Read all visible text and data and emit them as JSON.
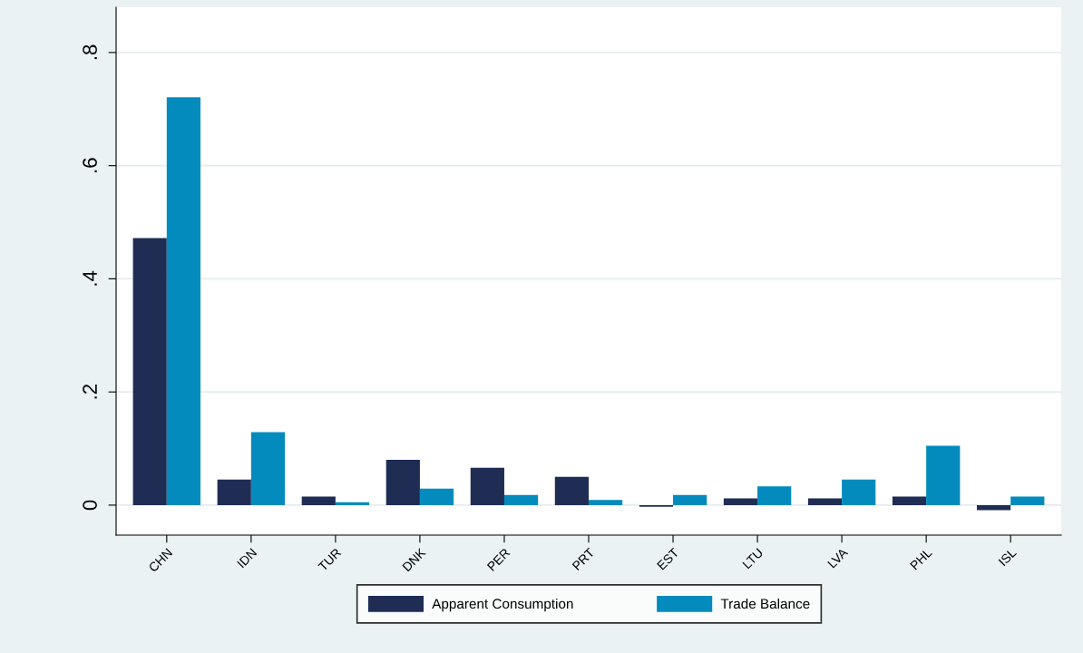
{
  "chart_data": {
    "type": "bar",
    "categories": [
      "CHN",
      "IDN",
      "TUR",
      "DNK",
      "PER",
      "PRT",
      "EST",
      "LTU",
      "LVA",
      "PHL",
      "ISL"
    ],
    "series": [
      {
        "name": "Apparent Consumption",
        "color": "#1f2d55",
        "values": [
          0.472,
          0.045,
          0.015,
          0.08,
          0.066,
          0.05,
          -0.003,
          0.012,
          0.012,
          0.015,
          -0.009
        ]
      },
      {
        "name": "Trade Balance",
        "color": "#038bbd",
        "values": [
          0.721,
          0.129,
          0.005,
          0.029,
          0.018,
          0.009,
          0.018,
          0.033,
          0.045,
          0.105,
          0.015
        ]
      }
    ],
    "ylim": [
      -0.053,
      0.88
    ],
    "yticks": [
      {
        "value": 0,
        "label": "0"
      },
      {
        "value": 0.2,
        "label": ".2"
      },
      {
        "value": 0.4,
        "label": ".4"
      },
      {
        "value": 0.6,
        "label": ".6"
      },
      {
        "value": 0.8,
        "label": ".8"
      }
    ],
    "grid": "y",
    "legend": "bottom"
  }
}
